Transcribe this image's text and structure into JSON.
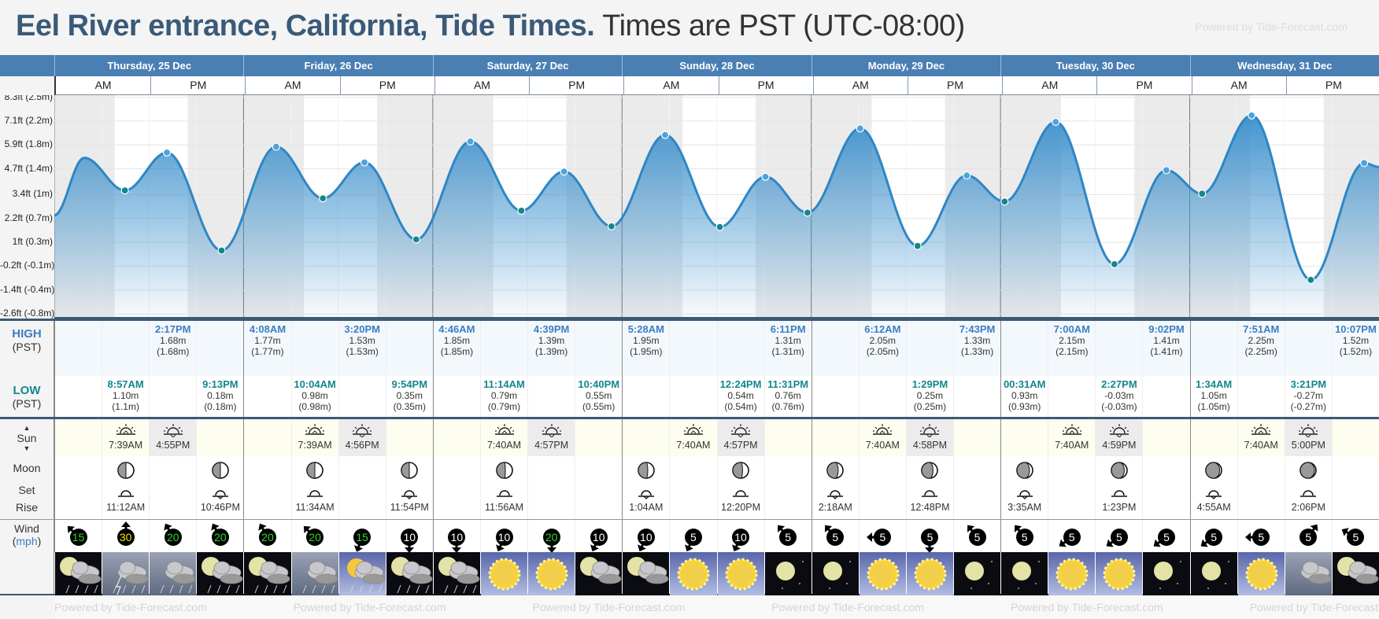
{
  "header": {
    "title": "Eel River entrance, California, Tide Times.",
    "timezone_note": "Times are PST (UTC-08:00)",
    "powered_by": "Powered by Tide-Forecast.com"
  },
  "days": [
    "Thursday, 25 Dec",
    "Friday, 26 Dec",
    "Saturday, 27 Dec",
    "Sunday, 28 Dec",
    "Monday, 29 Dec",
    "Tuesday, 30 Dec",
    "Wednesday, 31 Dec"
  ],
  "am_label": "AM",
  "pm_label": "PM",
  "labels": {
    "high": "HIGH",
    "low": "LOW",
    "pst": "(PST)",
    "sun": "Sun",
    "moon": "Moon",
    "set": "Set",
    "rise": "Rise",
    "wind": "Wind",
    "mph": "mph"
  },
  "colors": {
    "header_bar": "#4a7fb3",
    "title": "#3a5a78",
    "high": "#3f7dbf",
    "low": "#14868c",
    "curve": "#2f86c4"
  },
  "chart_data": {
    "type": "area",
    "title": "Tide height",
    "ylim_ft": [
      -2.83,
      8.4
    ],
    "y_ticks": [
      {
        "label": "8.3ft (2.5m)",
        "ft": 8.3
      },
      {
        "label": "7.1ft (2.2m)",
        "ft": 7.1
      },
      {
        "label": "5.9ft (1.8m)",
        "ft": 5.9
      },
      {
        "label": "4.7ft (1.4m)",
        "ft": 4.7
      },
      {
        "label": "3.4ft (1m)",
        "ft": 3.4
      },
      {
        "label": "2.2ft (0.7m)",
        "ft": 2.2
      },
      {
        "label": "1ft (0.3m)",
        "ft": 1.0
      },
      {
        "label": "-0.2ft (-0.1m)",
        "ft": -0.2
      },
      {
        "label": "-1.4ft (-0.4m)",
        "ft": -1.4
      },
      {
        "label": "-2.6ft (-0.8m)",
        "ft": -2.6
      }
    ],
    "extremes": [
      {
        "day": 0,
        "time": "8:57AM",
        "m": 1.1,
        "type": "low"
      },
      {
        "day": 0,
        "time": "2:17PM",
        "m": 1.68,
        "type": "high"
      },
      {
        "day": 0,
        "time": "9:13PM",
        "m": 0.18,
        "type": "low"
      },
      {
        "day": 1,
        "time": "4:08AM",
        "m": 1.77,
        "type": "high"
      },
      {
        "day": 1,
        "time": "10:04AM",
        "m": 0.98,
        "type": "low"
      },
      {
        "day": 1,
        "time": "3:20PM",
        "m": 1.53,
        "type": "high"
      },
      {
        "day": 1,
        "time": "9:54PM",
        "m": 0.35,
        "type": "low"
      },
      {
        "day": 2,
        "time": "4:46AM",
        "m": 1.85,
        "type": "high"
      },
      {
        "day": 2,
        "time": "11:14AM",
        "m": 0.79,
        "type": "low"
      },
      {
        "day": 2,
        "time": "4:39PM",
        "m": 1.39,
        "type": "high"
      },
      {
        "day": 2,
        "time": "10:40PM",
        "m": 0.55,
        "type": "low"
      },
      {
        "day": 3,
        "time": "5:28AM",
        "m": 1.95,
        "type": "high"
      },
      {
        "day": 3,
        "time": "12:24PM",
        "m": 0.54,
        "type": "low"
      },
      {
        "day": 3,
        "time": "6:11PM",
        "m": 1.31,
        "type": "high"
      },
      {
        "day": 3,
        "time": "11:31PM",
        "m": 0.76,
        "type": "low"
      },
      {
        "day": 4,
        "time": "6:12AM",
        "m": 2.05,
        "type": "high"
      },
      {
        "day": 4,
        "time": "1:29PM",
        "m": 0.25,
        "type": "low"
      },
      {
        "day": 4,
        "time": "7:43PM",
        "m": 1.33,
        "type": "high"
      },
      {
        "day": 5,
        "time": "00:31AM",
        "m": 0.93,
        "type": "low"
      },
      {
        "day": 5,
        "time": "7:00AM",
        "m": 2.15,
        "type": "high"
      },
      {
        "day": 5,
        "time": "2:27PM",
        "m": -0.03,
        "type": "low"
      },
      {
        "day": 5,
        "time": "9:02PM",
        "m": 1.41,
        "type": "high"
      },
      {
        "day": 6,
        "time": "1:34AM",
        "m": 1.05,
        "type": "low"
      },
      {
        "day": 6,
        "time": "7:51AM",
        "m": 2.25,
        "type": "high"
      },
      {
        "day": 6,
        "time": "3:21PM",
        "m": -0.27,
        "type": "low"
      },
      {
        "day": 6,
        "time": "10:07PM",
        "m": 1.52,
        "type": "high"
      }
    ],
    "curve_estimates": [
      {
        "day": 0,
        "time": "12:00AM",
        "m": 0.72
      },
      {
        "day": 0,
        "time": "3:48AM",
        "m": 1.6
      },
      {
        "day": 6,
        "time": "11:59PM",
        "m": 1.46
      }
    ],
    "daylight": [
      {
        "rise": "7:39AM",
        "set": "4:55PM"
      },
      {
        "rise": "7:39AM",
        "set": "4:56PM"
      },
      {
        "rise": "7:40AM",
        "set": "4:57PM"
      },
      {
        "rise": "7:40AM",
        "set": "4:57PM"
      },
      {
        "rise": "7:40AM",
        "set": "4:58PM"
      },
      {
        "rise": "7:40AM",
        "set": "4:59PM"
      },
      {
        "rise": "7:40AM",
        "set": "5:00PM"
      }
    ]
  },
  "high": [
    null,
    null,
    {
      "t": "2:17PM",
      "v": "1.68m",
      "p": "(1.68m)"
    },
    null,
    {
      "t": "4:08AM",
      "v": "1.77m",
      "p": "(1.77m)"
    },
    null,
    {
      "t": "3:20PM",
      "v": "1.53m",
      "p": "(1.53m)"
    },
    null,
    {
      "t": "4:46AM",
      "v": "1.85m",
      "p": "(1.85m)"
    },
    null,
    {
      "t": "4:39PM",
      "v": "1.39m",
      "p": "(1.39m)"
    },
    null,
    {
      "t": "5:28AM",
      "v": "1.95m",
      "p": "(1.95m)"
    },
    null,
    null,
    {
      "t": "6:11PM",
      "v": "1.31m",
      "p": "(1.31m)"
    },
    null,
    {
      "t": "6:12AM",
      "v": "2.05m",
      "p": "(2.05m)"
    },
    null,
    {
      "t": "7:43PM",
      "v": "1.33m",
      "p": "(1.33m)"
    },
    null,
    {
      "t": "7:00AM",
      "v": "2.15m",
      "p": "(2.15m)"
    },
    null,
    {
      "t": "9:02PM",
      "v": "1.41m",
      "p": "(1.41m)"
    },
    null,
    {
      "t": "7:51AM",
      "v": "2.25m",
      "p": "(2.25m)"
    },
    null,
    {
      "t": "10:07PM",
      "v": "1.52m",
      "p": "(1.52m)"
    }
  ],
  "low": [
    null,
    {
      "t": "8:57AM",
      "v": "1.10m",
      "p": "(1.1m)"
    },
    null,
    {
      "t": "9:13PM",
      "v": "0.18m",
      "p": "(0.18m)"
    },
    null,
    {
      "t": "10:04AM",
      "v": "0.98m",
      "p": "(0.98m)"
    },
    null,
    {
      "t": "9:54PM",
      "v": "0.35m",
      "p": "(0.35m)"
    },
    null,
    {
      "t": "11:14AM",
      "v": "0.79m",
      "p": "(0.79m)"
    },
    null,
    {
      "t": "10:40PM",
      "v": "0.55m",
      "p": "(0.55m)"
    },
    null,
    null,
    {
      "t": "12:24PM",
      "v": "0.54m",
      "p": "(0.54m)"
    },
    {
      "t": "11:31PM",
      "v": "0.76m",
      "p": "(0.76m)"
    },
    null,
    null,
    {
      "t": "1:29PM",
      "v": "0.25m",
      "p": "(0.25m)"
    },
    null,
    {
      "t": "00:31AM",
      "v": "0.93m",
      "p": "(0.93m)"
    },
    null,
    {
      "t": "2:27PM",
      "v": "-0.03m",
      "p": "(-0.03m)"
    },
    null,
    {
      "t": "1:34AM",
      "v": "1.05m",
      "p": "(1.05m)"
    },
    null,
    {
      "t": "3:21PM",
      "v": "-0.27m",
      "p": "(-0.27m)"
    },
    null
  ],
  "sun": [
    null,
    {
      "t": "7:39AM",
      "k": "rise"
    },
    {
      "t": "4:55PM",
      "k": "set"
    },
    null,
    null,
    {
      "t": "7:39AM",
      "k": "rise"
    },
    {
      "t": "4:56PM",
      "k": "set"
    },
    null,
    null,
    {
      "t": "7:40AM",
      "k": "rise"
    },
    {
      "t": "4:57PM",
      "k": "set"
    },
    null,
    null,
    {
      "t": "7:40AM",
      "k": "rise"
    },
    {
      "t": "4:57PM",
      "k": "set"
    },
    null,
    null,
    {
      "t": "7:40AM",
      "k": "rise"
    },
    {
      "t": "4:58PM",
      "k": "set"
    },
    null,
    null,
    {
      "t": "7:40AM",
      "k": "rise"
    },
    {
      "t": "4:59PM",
      "k": "set"
    },
    null,
    null,
    {
      "t": "7:40AM",
      "k": "rise"
    },
    {
      "t": "5:00PM",
      "k": "set"
    },
    null
  ],
  "moon": [
    null,
    {
      "t": "11:12AM",
      "k": "rise",
      "ph": 0.5
    },
    null,
    {
      "t": "10:46PM",
      "k": "set",
      "ph": 0.5
    },
    null,
    {
      "t": "11:34AM",
      "k": "rise",
      "ph": 0.5
    },
    null,
    {
      "t": "11:54PM",
      "k": "set",
      "ph": 0.5
    },
    null,
    {
      "t": "11:56AM",
      "k": "rise",
      "ph": 0.55
    },
    null,
    null,
    {
      "t": "1:04AM",
      "k": "set",
      "ph": 0.6
    },
    null,
    {
      "t": "12:20PM",
      "k": "rise",
      "ph": 0.62
    },
    null,
    {
      "t": "2:18AM",
      "k": "set",
      "ph": 0.7
    },
    null,
    {
      "t": "12:48PM",
      "k": "rise",
      "ph": 0.72
    },
    null,
    {
      "t": "3:35AM",
      "k": "set",
      "ph": 0.8
    },
    null,
    {
      "t": "1:23PM",
      "k": "rise",
      "ph": 0.82
    },
    null,
    {
      "t": "4:55AM",
      "k": "set",
      "ph": 0.88
    },
    null,
    {
      "t": "2:06PM",
      "k": "rise",
      "ph": 0.9
    },
    null
  ],
  "wind": [
    {
      "s": "15",
      "d": 315,
      "c": "#2bd92b"
    },
    {
      "s": "30",
      "d": 0,
      "c": "#f2e600"
    },
    {
      "s": "20",
      "d": 330,
      "c": "#2bd92b"
    },
    {
      "s": "20",
      "d": 330,
      "c": "#2bd92b"
    },
    {
      "s": "20",
      "d": 330,
      "c": "#2bd92b"
    },
    {
      "s": "20",
      "d": 315,
      "c": "#2bd92b"
    },
    {
      "s": "15",
      "d": 200,
      "c": "#2bd92b"
    },
    {
      "s": "10",
      "d": 180,
      "c": "#ffffff"
    },
    {
      "s": "10",
      "d": 180,
      "c": "#ffffff"
    },
    {
      "s": "10",
      "d": 205,
      "c": "#ffffff"
    },
    {
      "s": "20",
      "d": 180,
      "c": "#2bd92b"
    },
    {
      "s": "10",
      "d": 205,
      "c": "#ffffff"
    },
    {
      "s": "10",
      "d": 205,
      "c": "#ffffff"
    },
    {
      "s": "5",
      "d": 205,
      "c": "#ffffff"
    },
    {
      "s": "10",
      "d": 205,
      "c": "#ffffff"
    },
    {
      "s": "5",
      "d": 320,
      "c": "#ffffff"
    },
    {
      "s": "5",
      "d": 320,
      "c": "#ffffff"
    },
    {
      "s": "5",
      "d": 270,
      "c": "#ffffff"
    },
    {
      "s": "5",
      "d": 180,
      "c": "#ffffff"
    },
    {
      "s": "5",
      "d": 320,
      "c": "#ffffff"
    },
    {
      "s": "5",
      "d": 320,
      "c": "#ffffff"
    },
    {
      "s": "5",
      "d": 235,
      "c": "#ffffff"
    },
    {
      "s": "5",
      "d": 235,
      "c": "#ffffff"
    },
    {
      "s": "5",
      "d": 235,
      "c": "#ffffff"
    },
    {
      "s": "5",
      "d": 235,
      "c": "#ffffff"
    },
    {
      "s": "5",
      "d": 270,
      "c": "#ffffff"
    },
    {
      "s": "5",
      "d": 35,
      "c": "#ffffff"
    },
    {
      "s": "5",
      "d": 300,
      "c": "#ffffff"
    }
  ],
  "weather": [
    "night-cloud-rain",
    "thunderstorm",
    "rain",
    "night-rain",
    "night-rain",
    "rain",
    "sun-cloud-rain",
    "night-cloud-rain",
    "night-cloud-rain",
    "sunny",
    "sunny",
    "night-cloud",
    "night-cloud",
    "sunny",
    "sunny",
    "night-clear",
    "night-clear",
    "sunny",
    "sunny",
    "night-clear",
    "night-clear",
    "sunny",
    "sunny",
    "night-clear",
    "night-clear",
    "sunny",
    "cloudy",
    "night-cloud"
  ]
}
